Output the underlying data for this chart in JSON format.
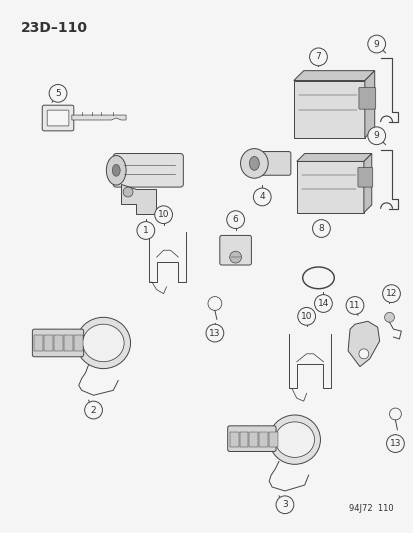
{
  "title": "23D–110",
  "footer": "94J72  110",
  "bg_color": "#f5f5f5",
  "fg_color": "#333333",
  "line_color": "#444444",
  "fig_width": 4.14,
  "fig_height": 5.33,
  "dpi": 100,
  "label_circle_r": 0.018,
  "label_fontsize": 6.0,
  "title_fontsize": 10,
  "lw": 0.7
}
